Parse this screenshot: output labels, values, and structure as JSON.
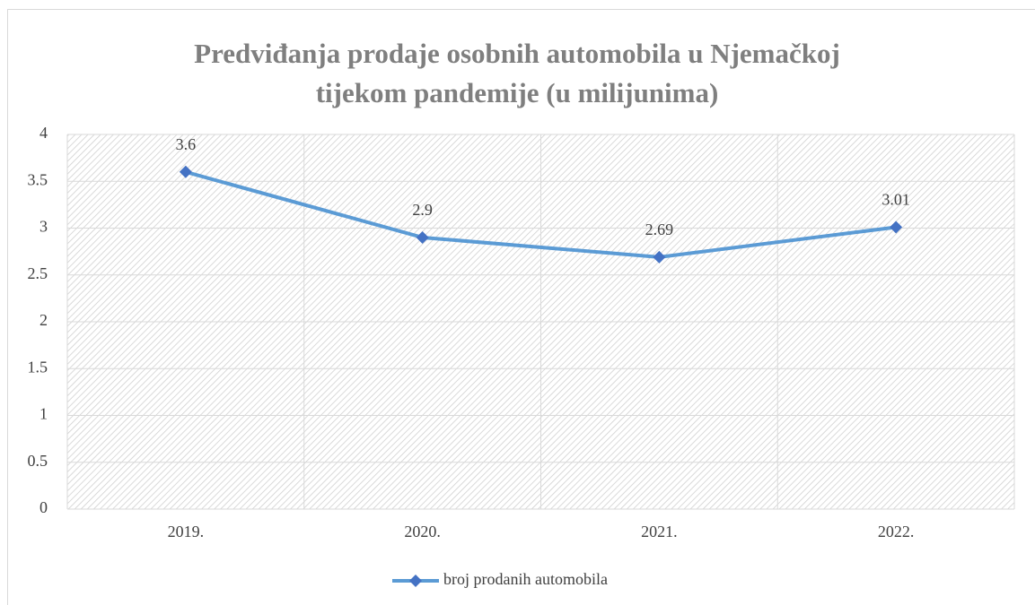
{
  "chart_data": {
    "type": "line",
    "title": "Predviđanja prodaje osobnih automobila u Njemačkoj tijekom pandemije (u milijunima)",
    "categories": [
      "2019.",
      "2020.",
      "2021.",
      "2022."
    ],
    "series": [
      {
        "name": "broj prodanih automobila",
        "color": "#5b9bd5",
        "marker_color": "#4472c4",
        "values": [
          3.6,
          2.9,
          2.69,
          3.01
        ]
      }
    ],
    "ylim": [
      0,
      4
    ],
    "yticks": [
      0,
      0.5,
      1,
      1.5,
      2,
      2.5,
      3,
      3.5,
      4
    ],
    "grid": true,
    "legend": "bottom"
  }
}
